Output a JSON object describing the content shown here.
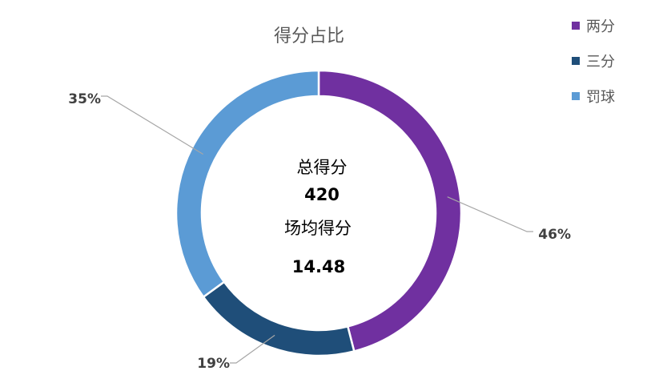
{
  "chart_data": {
    "type": "pie",
    "title": "得分占比",
    "categories": [
      "两分",
      "三分",
      "罚球"
    ],
    "values": [
      46,
      19,
      35
    ],
    "value_labels": [
      "46%",
      "19%",
      "35%"
    ],
    "colors": [
      "#7030a0",
      "#1f4e79",
      "#5b9bd5"
    ],
    "legend_position": "top-right",
    "center": {
      "total_label": "总得分",
      "total_value": "420",
      "avg_label": "场均得分",
      "avg_value": "14.48"
    }
  }
}
